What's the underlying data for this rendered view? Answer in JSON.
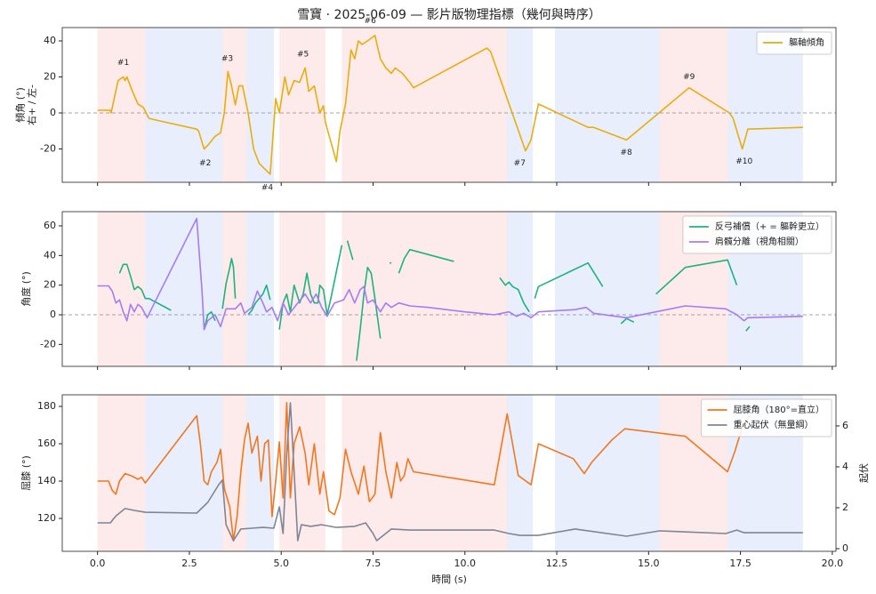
{
  "title": "雪寶 · 2025-06-09 — 影片版物理指標（幾何與時序）",
  "xlabel": "時間 (s)",
  "phases": [
    {
      "start": 0,
      "end": 1.3,
      "color": "rgba(240,90,90,0.13)"
    },
    {
      "start": 1.3,
      "end": 3.4,
      "color": "rgba(100,140,230,0.15)"
    },
    {
      "start": 3.4,
      "end": 4.05,
      "color": "rgba(240,90,90,0.13)"
    },
    {
      "start": 4.05,
      "end": 4.8,
      "color": "rgba(100,140,230,0.15)"
    },
    {
      "start": 4.95,
      "end": 6.2,
      "color": "rgba(240,90,90,0.13)"
    },
    {
      "start": 6.65,
      "end": 11.15,
      "color": "rgba(240,90,90,0.13)"
    },
    {
      "start": 11.15,
      "end": 11.85,
      "color": "rgba(100,140,230,0.15)"
    },
    {
      "start": 12.45,
      "end": 15.3,
      "color": "rgba(100,140,230,0.15)"
    },
    {
      "start": 15.3,
      "end": 17.15,
      "color": "rgba(240,90,90,0.13)"
    },
    {
      "start": 17.15,
      "end": 19.2,
      "color": "rgba(100,140,230,0.15)"
    }
  ],
  "chart_data": [
    {
      "type": "line",
      "ylabel": [
        "傾角 (°)",
        "右+ / 左-"
      ],
      "legend": "upper right",
      "hline": 0,
      "xlim": [
        -0.96,
        20.1
      ],
      "xticks": [
        {
          "value": 0,
          "label": "0.0"
        },
        2.5,
        {
          "value": 5,
          "label": "5.0"
        },
        7.5,
        {
          "value": 10,
          "label": "10.0"
        },
        12.5,
        {
          "value": 15,
          "label": "15.0"
        },
        17.5,
        {
          "value": 20,
          "label": "20.0"
        }
      ],
      "ylim": [
        -38.5,
        47.4
      ],
      "yticks": [
        -20,
        0,
        20,
        40
      ],
      "series": [
        {
          "name": "軀軸傾角",
          "color": "#e8ad0e",
          "x": [
            0,
            0.34,
            0.37,
            0.56,
            0.7,
            0.75,
            0.8,
            0.95,
            1.1,
            1.25,
            1.4,
            1.6,
            2.7,
            2.75,
            2.9,
            3.0,
            3.2,
            3.35,
            3.45,
            3.55,
            3.65,
            3.75,
            3.85,
            3.95,
            4.1,
            4.25,
            4.4,
            4.7,
            4.75,
            4.85,
            4.95,
            5.1,
            5.2,
            5.35,
            5.5,
            5.65,
            5.75,
            5.9,
            6.05,
            6.15,
            6.2,
            6.5,
            6.6,
            6.75,
            6.9,
            7.0,
            7.1,
            7.2,
            7.35,
            7.55,
            7.7,
            7.85,
            8.0,
            8.1,
            8.3,
            8.5,
            8.6,
            10.6,
            10.7,
            11.65,
            11.8,
            11.95,
            12.0,
            13.35,
            13.5,
            14.4,
            16.1,
            17.2,
            17.3,
            17.55,
            17.7,
            19.2
          ],
          "values": [
            1.5,
            1.5,
            0,
            18,
            20,
            18,
            20,
            12,
            5,
            3,
            -3,
            -4,
            -9,
            -10,
            -20,
            -18,
            -13,
            -11,
            0,
            23,
            15,
            4.5,
            15,
            15,
            0,
            -20,
            -28,
            -34,
            -20,
            8,
            0,
            20,
            10,
            18,
            17,
            25,
            12,
            15,
            0,
            4,
            -5,
            -27,
            -10,
            5,
            35,
            30,
            40,
            38,
            40,
            43,
            30,
            25,
            22,
            25,
            22,
            17,
            14,
            36,
            34,
            -21,
            -15,
            0,
            5,
            -8,
            -8,
            -15,
            14,
            0,
            -3,
            -20,
            -9,
            -8
          ]
        }
      ],
      "annotations": [
        {
          "text": "#1",
          "x": 0.7,
          "y": 28
        },
        {
          "text": "#2",
          "x": 2.93,
          "y": -28
        },
        {
          "text": "#3",
          "x": 3.53,
          "y": 30
        },
        {
          "text": "#4",
          "x": 4.62,
          "y": -41.5
        },
        {
          "text": "#5",
          "x": 5.59,
          "y": 32.6
        },
        {
          "text": "#6",
          "x": 7.42,
          "y": 51
        },
        {
          "text": "#7",
          "x": 11.49,
          "y": -28
        },
        {
          "text": "#8",
          "x": 14.39,
          "y": -22
        },
        {
          "text": "#9",
          "x": 16.1,
          "y": 20
        },
        {
          "text": "#10",
          "x": 17.6,
          "y": -27
        }
      ]
    },
    {
      "type": "line",
      "ylabel": [
        "角度 (°)"
      ],
      "legend": "upper right",
      "hline": 0,
      "xlim": [
        -0.96,
        20.1
      ],
      "xticks": [
        {
          "value": 0,
          "label": "0.0"
        },
        2.5,
        {
          "value": 5,
          "label": "5.0"
        },
        7.5,
        {
          "value": 10,
          "label": "10.0"
        },
        12.5,
        {
          "value": 15,
          "label": "15.0"
        },
        17.5,
        {
          "value": 20,
          "label": "20.0"
        }
      ],
      "ylim": [
        -34.8,
        69.6
      ],
      "yticks": [
        -20,
        0,
        20,
        40,
        60
      ],
      "series": [
        {
          "name": "反弓補償（+ = 軀幹更立）",
          "color": "#1db381",
          "x": [
            0.6,
            0.7,
            0.8,
            0.9,
            1.0,
            1.1,
            1.2,
            1.3,
            1.4,
            2.0,
            null,
            2.9,
            3.0,
            3.1,
            3.2,
            null,
            3.4,
            3.5,
            3.6,
            3.65,
            3.7,
            3.75,
            null,
            4.1,
            4.2,
            4.3,
            4.4,
            4.5,
            4.6,
            4.7,
            null,
            4.95,
            5.05,
            5.15,
            5.25,
            5.35,
            5.5,
            5.6,
            5.7,
            5.8,
            5.9,
            6.0,
            6.05,
            6.15,
            6.25,
            6.35,
            6.5,
            6.65,
            null,
            6.8,
            6.95,
            null,
            7.05,
            7.15,
            7.25,
            7.35,
            7.45,
            7.55,
            7.7,
            null,
            7.95,
            8.0,
            null,
            8.2,
            8.35,
            8.5,
            9.7,
            null,
            10.95,
            11.1,
            11.2,
            11.3,
            11.45,
            11.6,
            11.75,
            null,
            11.9,
            12.0,
            13.35,
            13.5,
            13.75,
            null,
            14.25,
            14.4,
            14.6,
            null,
            15.2,
            16.0,
            17.15,
            17.4,
            null,
            17.65,
            17.75
          ],
          "values": [
            28,
            34,
            34,
            26,
            17,
            19,
            17,
            11,
            11,
            3,
            null,
            -10,
            0,
            2,
            -4,
            null,
            4,
            21,
            32,
            38,
            32,
            11,
            null,
            0,
            3,
            8,
            11,
            14,
            20,
            10,
            null,
            -10,
            8,
            14,
            2,
            20,
            8,
            14,
            28,
            14,
            8,
            8,
            20,
            17,
            0,
            11,
            29,
            47,
            null,
            50,
            37,
            null,
            -31,
            -10,
            14,
            32,
            28,
            11,
            -16,
            null,
            35,
            35,
            null,
            28,
            38,
            44,
            36,
            null,
            25,
            20,
            22,
            19,
            17,
            8,
            2,
            null,
            11,
            19,
            35,
            29,
            19,
            null,
            -6,
            -2.5,
            -5,
            null,
            14,
            32,
            37,
            20,
            null,
            -11,
            -8
          ]
        },
        {
          "name": "肩髖分離（視角相關）",
          "color": "#a57cf2",
          "x": [
            0,
            0.3,
            0.4,
            0.5,
            0.6,
            0.7,
            0.8,
            0.9,
            1.0,
            1.1,
            1.2,
            1.35,
            2.7,
            2.85,
            2.9,
            3.0,
            3.2,
            3.35,
            3.5,
            3.75,
            3.9,
            4.0,
            4.2,
            4.35,
            4.5,
            4.6,
            4.75,
            4.9,
            5.05,
            5.2,
            5.45,
            5.65,
            5.8,
            5.95,
            6.1,
            6.25,
            6.45,
            6.7,
            6.85,
            7.0,
            7.15,
            7.25,
            7.35,
            7.5,
            7.7,
            7.85,
            8.0,
            8.2,
            8.5,
            9.0,
            10.0,
            10.8,
            11.2,
            11.4,
            11.6,
            11.8,
            12.0,
            13.0,
            13.3,
            13.5,
            14.4,
            15.0,
            16.0,
            17.1,
            17.4,
            17.6,
            17.7,
            19.2
          ],
          "values": [
            19.5,
            19.5,
            16,
            8,
            10,
            2,
            -4,
            7,
            2,
            7,
            5,
            -2,
            65,
            14,
            -10,
            -4,
            0,
            -8,
            4,
            4,
            8,
            1,
            5,
            16,
            8,
            2,
            5,
            -4,
            8,
            0,
            8,
            14,
            8,
            14,
            5,
            -1,
            8,
            10,
            17,
            8,
            17,
            19,
            8,
            10,
            2,
            8,
            5,
            8,
            6,
            5,
            2,
            0,
            2,
            -1,
            1,
            -2,
            2,
            3.5,
            5,
            1,
            -2,
            1,
            6,
            4,
            0,
            -4,
            -2,
            -1
          ]
        }
      ]
    },
    {
      "type": "line",
      "ylabel": [
        "屈膝 (°)"
      ],
      "y2label": "起伏",
      "legend": "upper right",
      "xlim": [
        -0.96,
        20.1
      ],
      "xticks": [
        {
          "value": 0,
          "label": "0.0"
        },
        2.5,
        {
          "value": 5,
          "label": "5.0"
        },
        7.5,
        {
          "value": 10,
          "label": "10.0"
        },
        12.5,
        {
          "value": 15,
          "label": "15.0"
        },
        17.5,
        {
          "value": 20,
          "label": "20.0"
        }
      ],
      "ylim": [
        102.4,
        186.2
      ],
      "yticks": [
        120,
        140,
        160,
        180
      ],
      "y2lim": [
        -0.13,
        7.52
      ],
      "y2ticks": [
        0,
        2,
        4,
        6
      ],
      "series": [
        {
          "name": "屈膝角（180°=直立）",
          "color": "#f07820",
          "x": [
            0,
            0.3,
            0.4,
            0.5,
            0.6,
            0.75,
            0.9,
            1.1,
            1.2,
            1.3,
            2.7,
            2.8,
            2.9,
            3.0,
            3.1,
            3.25,
            3.35,
            3.45,
            3.6,
            3.7,
            3.8,
            3.9,
            4.0,
            4.1,
            4.2,
            4.35,
            4.45,
            4.55,
            4.65,
            4.75,
            4.85,
            4.95,
            5.05,
            5.15,
            5.25,
            5.35,
            5.5,
            5.65,
            5.75,
            5.9,
            6.05,
            6.15,
            6.3,
            6.45,
            6.6,
            6.75,
            6.9,
            7.1,
            7.25,
            7.4,
            7.55,
            7.7,
            7.85,
            8.0,
            8.15,
            8.25,
            8.35,
            8.45,
            8.6,
            10.8,
            11.15,
            11.45,
            11.8,
            12.0,
            12.95,
            13.1,
            13.25,
            13.45,
            14.0,
            14.35,
            16.0,
            17.15,
            17.35,
            17.55,
            17.75
          ],
          "values": [
            140,
            140,
            135,
            133,
            140,
            144,
            143,
            141,
            142,
            139,
            175,
            160,
            140,
            138,
            145,
            150,
            157,
            136,
            126,
            108,
            121,
            145,
            162,
            171,
            155,
            164,
            140,
            160,
            162,
            121,
            140,
            161,
            131,
            182,
            131,
            160,
            169,
            155,
            138,
            160,
            133,
            145,
            124,
            122,
            131,
            157,
            145,
            133,
            148,
            129,
            133,
            166,
            145,
            131,
            150,
            140,
            143,
            152,
            145,
            138,
            176,
            143,
            138,
            160,
            152,
            148,
            144,
            150,
            162,
            168,
            164,
            145,
            156,
            169,
            175
          ]
        },
        {
          "name": "重心起伏（無量綱）",
          "color": "#7d8597",
          "axis": "y2",
          "x": [
            0,
            0.35,
            0.5,
            0.75,
            1.0,
            1.3,
            2.7,
            3.0,
            3.3,
            3.4,
            3.5,
            3.7,
            3.9,
            4.2,
            4.5,
            4.8,
            4.95,
            5.05,
            5.15,
            5.25,
            5.35,
            5.45,
            5.55,
            5.8,
            6.1,
            6.5,
            7.0,
            7.3,
            7.5,
            7.6,
            8.0,
            8.5,
            10.8,
            11.2,
            11.5,
            12.0,
            13.0,
            14.4,
            15.3,
            17.1,
            17.4,
            17.6,
            19.2
          ],
          "values": [
            1.26,
            1.26,
            1.6,
            1.96,
            1.87,
            1.78,
            1.74,
            2.26,
            3.13,
            3.35,
            1.17,
            0.39,
            0.96,
            1.0,
            1.04,
            1.0,
            2.04,
            0.74,
            4.65,
            7.13,
            3.78,
            0.39,
            1.17,
            1.09,
            1.17,
            1.04,
            1.09,
            1.26,
            0.74,
            0.39,
            0.96,
            0.91,
            0.91,
            0.74,
            0.65,
            0.65,
            0.96,
            0.61,
            0.87,
            0.74,
            0.91,
            0.78,
            0.78
          ]
        }
      ]
    }
  ]
}
